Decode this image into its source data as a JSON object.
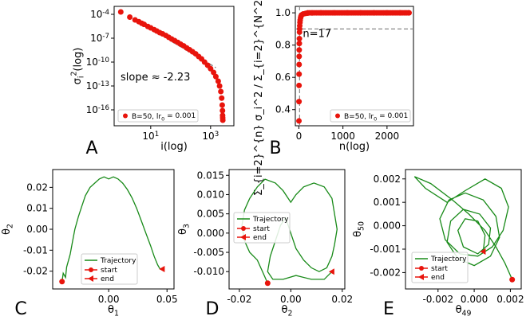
{
  "chart_data": [
    {
      "id": "A",
      "type": "scatter",
      "panel_letter": "A",
      "xlabel": "i(log)",
      "ylabel": "σ_i^2(log)",
      "xscale": "log",
      "yscale": "log",
      "xlim": [
        0.6,
        6000
      ],
      "ylim": [
        1e-18,
        0.001
      ],
      "xticks": [
        {
          "v": 10,
          "label": "10^1"
        },
        {
          "v": 1000,
          "label": "10^3"
        }
      ],
      "yticks": [
        {
          "v": 0.0001,
          "label": "10^-4"
        },
        {
          "v": 1e-07,
          "label": "10^-7"
        },
        {
          "v": 1e-10,
          "label": "10^-10"
        },
        {
          "v": 1e-13,
          "label": "10^-13"
        },
        {
          "v": 1e-16,
          "label": "10^-16"
        }
      ],
      "annotation": "slope ≈ -2.23",
      "legend": {
        "label": "B=50, lr_0 = 0.001",
        "position": "lower-left"
      },
      "series": [
        {
          "name": "B=50, lr_0 = 0.001",
          "color": "#e8140c",
          "points": [
            [
              1,
              0.0002
            ],
            [
              2,
              4.5e-05
            ],
            [
              3,
              2e-05
            ],
            [
              4,
              1.2e-05
            ],
            [
              5,
              7.5e-06
            ],
            [
              6,
              5.5e-06
            ],
            [
              8,
              3e-06
            ],
            [
              10,
              2e-06
            ],
            [
              13,
              1.2e-06
            ],
            [
              16,
              8e-07
            ],
            [
              20,
              5e-07
            ],
            [
              25,
              3.5e-07
            ],
            [
              32,
              2.2e-07
            ],
            [
              40,
              1.3e-07
            ],
            [
              50,
              8e-08
            ],
            [
              63,
              5e-08
            ],
            [
              80,
              3e-08
            ],
            [
              100,
              1.8e-08
            ],
            [
              126,
              1.1e-08
            ],
            [
              160,
              6e-09
            ],
            [
              200,
              3.5e-09
            ],
            [
              250,
              2e-09
            ],
            [
              316,
              1.1e-09
            ],
            [
              400,
              5e-10
            ],
            [
              500,
              2.5e-10
            ],
            [
              630,
              1e-10
            ],
            [
              800,
              4e-11
            ],
            [
              1000,
              1.5e-11
            ],
            [
              1260,
              5e-12
            ],
            [
              1500,
              1.5e-12
            ],
            [
              1800,
              4e-13
            ],
            [
              2000,
              1e-13
            ],
            [
              2200,
              2e-14
            ],
            [
              2350,
              3e-15
            ],
            [
              2450,
              4e-16
            ],
            [
              2500,
              8e-17
            ],
            [
              2520,
              2e-17
            ],
            [
              2540,
              1e-17
            ],
            [
              2560,
              5e-18
            ]
          ]
        }
      ],
      "reference_line": {
        "style": "dashed",
        "color": "#888888",
        "points": [
          [
            50,
            4e-08
          ],
          [
            1500,
            2e-11
          ]
        ]
      }
    },
    {
      "id": "B",
      "type": "scatter",
      "panel_letter": "B",
      "xlabel": "n(log)",
      "ylabel": "Σ_{i=2}^{n} σ_i^2 / Σ_{i=2}^{N^2} σ_i^2(log)",
      "xlim": [
        -80,
        2600
      ],
      "ylim": [
        0.3,
        1.04
      ],
      "xticks": [
        {
          "v": 0,
          "label": "0"
        },
        {
          "v": 1000,
          "label": "1000"
        },
        {
          "v": 2000,
          "label": "2000"
        }
      ],
      "yticks": [
        {
          "v": 0.4,
          "label": "0.4"
        },
        {
          "v": 0.6,
          "label": "0.6"
        },
        {
          "v": 0.8,
          "label": "0.8"
        },
        {
          "v": 1.0,
          "label": "1.0"
        }
      ],
      "annotation": "n=17",
      "hline": 0.9,
      "vline": 17,
      "legend": {
        "label": "B=50, lr_0 = 0.001",
        "position": "lower-right"
      },
      "series": [
        {
          "name": "B=50, lr_0 = 0.001",
          "color": "#e8140c",
          "points": [
            [
              2,
              0.33
            ],
            [
              3,
              0.45
            ],
            [
              4,
              0.55
            ],
            [
              5,
              0.62
            ],
            [
              6,
              0.68
            ],
            [
              7,
              0.73
            ],
            [
              8,
              0.77
            ],
            [
              10,
              0.81
            ],
            [
              12,
              0.84
            ],
            [
              15,
              0.88
            ],
            [
              17,
              0.9
            ],
            [
              20,
              0.92
            ],
            [
              25,
              0.94
            ],
            [
              30,
              0.955
            ],
            [
              40,
              0.97
            ],
            [
              50,
              0.98
            ],
            [
              70,
              0.988
            ],
            [
              100,
              0.993
            ],
            [
              150,
              0.996
            ],
            [
              200,
              0.998
            ],
            [
              300,
              0.999
            ],
            [
              500,
              1.0
            ],
            [
              800,
              1.0
            ],
            [
              1100,
              1.0
            ],
            [
              1400,
              1.0
            ],
            [
              1700,
              1.0
            ],
            [
              2000,
              1.0
            ],
            [
              2300,
              1.0
            ],
            [
              2500,
              1.0
            ]
          ]
        }
      ]
    },
    {
      "id": "C",
      "type": "line",
      "panel_letter": "C",
      "xlabel": "θ_1",
      "ylabel": "θ_2",
      "xlim": [
        -0.048,
        0.056
      ],
      "ylim": [
        -0.0285,
        0.0285
      ],
      "xticks": [
        {
          "v": 0.0,
          "label": "0.00"
        },
        {
          "v": 0.05,
          "label": "0.05"
        }
      ],
      "yticks": [
        {
          "v": 0.02,
          "label": "0.02"
        },
        {
          "v": 0.01,
          "label": "0.01"
        },
        {
          "v": 0.0,
          "label": "0.00"
        },
        {
          "v": -0.01,
          "label": "-0.01"
        },
        {
          "v": -0.02,
          "label": "-0.02"
        }
      ],
      "legend": {
        "entries": [
          "Trajectory",
          "start",
          "end"
        ],
        "position": "lower-center"
      },
      "start": [
        -0.04,
        -0.025
      ],
      "end": [
        0.046,
        -0.019
      ],
      "series": [
        {
          "name": "Trajectory",
          "color": "#188a18",
          "points": [
            [
              -0.04,
              -0.025
            ],
            [
              -0.039,
              -0.021
            ],
            [
              -0.037,
              -0.023
            ],
            [
              -0.036,
              -0.018
            ],
            [
              -0.033,
              -0.012
            ],
            [
              -0.031,
              -0.006
            ],
            [
              -0.029,
              0.0
            ],
            [
              -0.026,
              0.006
            ],
            [
              -0.023,
              0.011
            ],
            [
              -0.02,
              0.016
            ],
            [
              -0.016,
              0.02
            ],
            [
              -0.012,
              0.022
            ],
            [
              -0.008,
              0.024
            ],
            [
              -0.004,
              0.025
            ],
            [
              0.0,
              0.024
            ],
            [
              0.004,
              0.025
            ],
            [
              0.008,
              0.024
            ],
            [
              0.012,
              0.022
            ],
            [
              0.016,
              0.019
            ],
            [
              0.02,
              0.015
            ],
            [
              0.024,
              0.01
            ],
            [
              0.028,
              0.004
            ],
            [
              0.032,
              -0.002
            ],
            [
              0.036,
              -0.008
            ],
            [
              0.039,
              -0.013
            ],
            [
              0.042,
              -0.017
            ],
            [
              0.044,
              -0.019
            ],
            [
              0.046,
              -0.019
            ]
          ]
        }
      ]
    },
    {
      "id": "D",
      "type": "line",
      "panel_letter": "D",
      "xlabel": "θ_2",
      "ylabel": "θ_3",
      "xlim": [
        -0.024,
        0.021
      ],
      "ylim": [
        -0.0145,
        0.0165
      ],
      "xticks": [
        {
          "v": -0.02,
          "label": "-0.02"
        },
        {
          "v": 0.0,
          "label": "0.00"
        },
        {
          "v": 0.02,
          "label": "0.02"
        }
      ],
      "yticks": [
        {
          "v": 0.015,
          "label": "0.015"
        },
        {
          "v": 0.01,
          "label": "0.010"
        },
        {
          "v": 0.005,
          "label": "0.005"
        },
        {
          "v": 0.0,
          "label": "0.000"
        },
        {
          "v": -0.005,
          "label": "-0.005"
        },
        {
          "v": -0.01,
          "label": "-0.010"
        }
      ],
      "legend": {
        "entries": [
          "Trajectory",
          "start",
          "end"
        ],
        "position": "center-left"
      },
      "start": [
        -0.009,
        -0.013
      ],
      "end": [
        0.016,
        -0.01
      ],
      "series": [
        {
          "name": "Trajectory",
          "color": "#188a18",
          "points": [
            [
              -0.009,
              -0.013
            ],
            [
              -0.011,
              -0.01
            ],
            [
              -0.013,
              -0.007
            ],
            [
              -0.016,
              -0.005
            ],
            [
              -0.018,
              -0.002
            ],
            [
              -0.019,
              0.002
            ],
            [
              -0.018,
              0.006
            ],
            [
              -0.016,
              0.009
            ],
            [
              -0.013,
              0.012
            ],
            [
              -0.01,
              0.014
            ],
            [
              -0.006,
              0.013
            ],
            [
              -0.003,
              0.011
            ],
            [
              0.0,
              0.008
            ],
            [
              0.002,
              0.01
            ],
            [
              0.005,
              0.012
            ],
            [
              0.009,
              0.013
            ],
            [
              0.013,
              0.012
            ],
            [
              0.016,
              0.009
            ],
            [
              0.017,
              0.005
            ],
            [
              0.018,
              0.001
            ],
            [
              0.017,
              -0.003
            ],
            [
              0.016,
              -0.006
            ],
            [
              0.014,
              -0.009
            ],
            [
              0.011,
              -0.01
            ],
            [
              0.008,
              -0.009
            ],
            [
              0.005,
              -0.007
            ],
            [
              0.002,
              -0.004
            ],
            [
              0.0,
              0.0
            ],
            [
              -0.002,
              0.004
            ],
            [
              -0.004,
              0.002
            ],
            [
              -0.006,
              -0.002
            ],
            [
              -0.008,
              -0.006
            ],
            [
              -0.009,
              -0.01
            ],
            [
              -0.007,
              -0.012
            ],
            [
              -0.003,
              -0.012
            ],
            [
              0.002,
              -0.011
            ],
            [
              0.008,
              -0.012
            ],
            [
              0.013,
              -0.012
            ],
            [
              0.016,
              -0.01
            ]
          ]
        }
      ]
    },
    {
      "id": "E",
      "type": "line",
      "panel_letter": "E",
      "xlabel": "θ_49",
      "ylabel": "θ_50",
      "xlim": [
        -0.0038,
        0.0026
      ],
      "ylim": [
        -0.0027,
        0.0024
      ],
      "xticks": [
        {
          "v": -0.002,
          "label": "-0.002"
        },
        {
          "v": 0.0,
          "label": "0.000"
        },
        {
          "v": 0.002,
          "label": "0.002"
        }
      ],
      "yticks": [
        {
          "v": 0.002,
          "label": "0.002"
        },
        {
          "v": 0.001,
          "label": "0.001"
        },
        {
          "v": 0.0,
          "label": "0.000"
        },
        {
          "v": -0.001,
          "label": "-0.001"
        },
        {
          "v": -0.002,
          "label": "-0.002"
        }
      ],
      "legend": {
        "entries": [
          "Trajectory",
          "start",
          "end"
        ],
        "position": "lower-left"
      },
      "start": [
        0.0021,
        -0.0023
      ],
      "end": [
        0.0005,
        -0.0011
      ],
      "series": [
        {
          "name": "Trajectory",
          "color": "#188a18",
          "points": [
            [
              0.0021,
              -0.0023
            ],
            [
              0.0017,
              -0.0016
            ],
            [
              0.0012,
              -0.0009
            ],
            [
              0.0006,
              -0.0002
            ],
            [
              -0.0003,
              0.0005
            ],
            [
              -0.0012,
              0.0011
            ],
            [
              -0.0024,
              0.0018
            ],
            [
              -0.0033,
              0.0021
            ],
            [
              -0.0027,
              0.0016
            ],
            [
              -0.0015,
              0.001
            ],
            [
              -0.0005,
              0.0015
            ],
            [
              0.0006,
              0.002
            ],
            [
              0.0015,
              0.0016
            ],
            [
              0.0019,
              0.0008
            ],
            [
              0.0016,
              -0.0002
            ],
            [
              0.001,
              -0.0009
            ],
            [
              0.0002,
              -0.0013
            ],
            [
              -0.0008,
              -0.0012
            ],
            [
              -0.0016,
              -0.0006
            ],
            [
              -0.0019,
              0.0003
            ],
            [
              -0.0014,
              0.0011
            ],
            [
              -0.0005,
              0.0014
            ],
            [
              0.0005,
              0.0011
            ],
            [
              0.0012,
              0.0004
            ],
            [
              0.0014,
              -0.0005
            ],
            [
              0.0009,
              -0.0013
            ],
            [
              0.0,
              -0.0017
            ],
            [
              -0.0009,
              -0.0014
            ],
            [
              -0.0015,
              -0.0007
            ],
            [
              -0.0013,
              0.0002
            ],
            [
              -0.0006,
              0.0007
            ],
            [
              0.0003,
              0.0005
            ],
            [
              0.0009,
              -0.0001
            ],
            [
              0.0008,
              -0.0008
            ],
            [
              0.0002,
              -0.0012
            ],
            [
              -0.0006,
              -0.0009
            ],
            [
              -0.0009,
              -0.0002
            ],
            [
              -0.0005,
              0.0003
            ],
            [
              0.0002,
              0.0002
            ],
            [
              0.0006,
              -0.0004
            ],
            [
              0.0005,
              -0.0011
            ]
          ]
        }
      ]
    }
  ]
}
